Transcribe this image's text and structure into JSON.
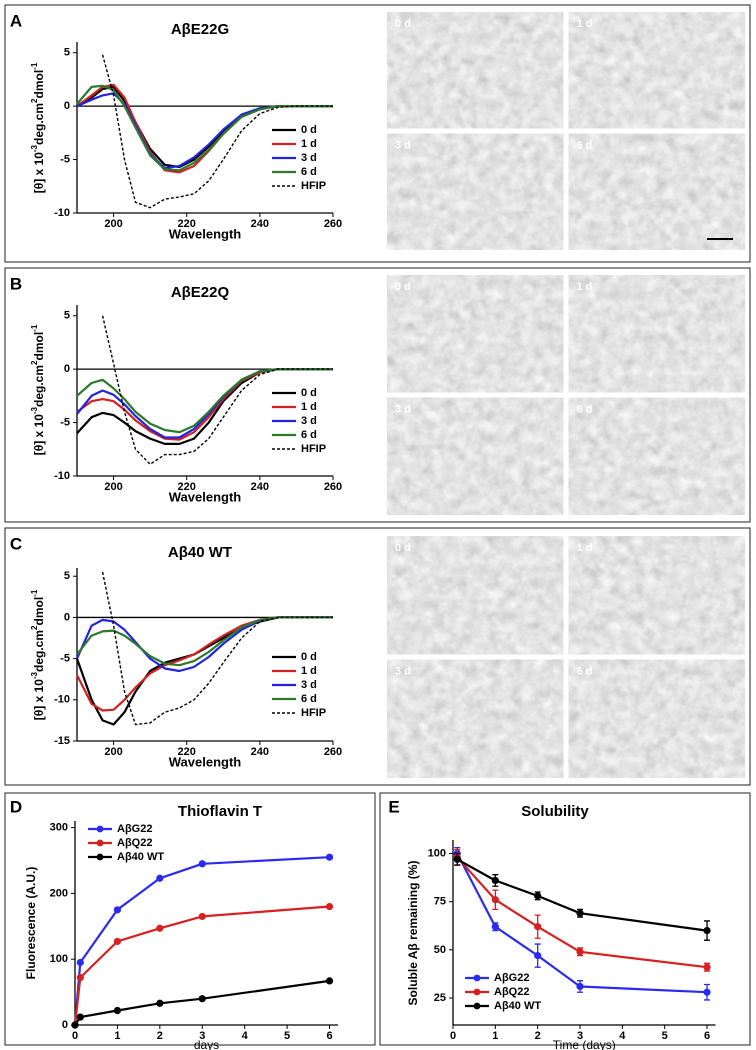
{
  "chart_data": [
    {
      "type": "line",
      "panel": "A",
      "title": "AβE22G",
      "xlabel": "Wavelength",
      "ylabel": [
        "[θ] x 10",
        "-3",
        "deg.cm",
        "2",
        "dmol",
        "-1"
      ],
      "x": [
        190,
        194,
        197,
        200,
        203,
        206,
        210,
        214,
        218,
        222,
        226,
        230,
        235,
        240,
        245,
        250,
        260
      ],
      "xlim": [
        190,
        260
      ],
      "xticks": [
        200,
        220,
        240,
        260
      ],
      "ylim": [
        -10,
        6
      ],
      "yticks": [
        -10,
        -5,
        0,
        5
      ],
      "legend": "lower right",
      "markers": false,
      "series": [
        {
          "name": "0 d",
          "color": "#000000",
          "values": [
            0,
            0.8,
            1.6,
            1.8,
            0.5,
            -1.5,
            -4,
            -5.5,
            -5.7,
            -5,
            -3.8,
            -2.3,
            -0.8,
            -0.2,
            0,
            0,
            0
          ]
        },
        {
          "name": "1 d",
          "color": "#d42020",
          "values": [
            0,
            1,
            1.8,
            2,
            0.8,
            -1.5,
            -4.3,
            -6,
            -6.2,
            -5.6,
            -4.2,
            -2.6,
            -1,
            -0.3,
            0,
            0,
            0
          ]
        },
        {
          "name": "3 d",
          "color": "#2323e0",
          "values": [
            0,
            0.6,
            1,
            1.2,
            0.2,
            -1.8,
            -4.5,
            -5.8,
            -5.6,
            -4.8,
            -3.6,
            -2.2,
            -0.8,
            -0.2,
            0,
            0,
            0
          ]
        },
        {
          "name": "6 d",
          "color": "#2a7a2a",
          "values": [
            0.2,
            1.8,
            1.9,
            1.5,
            0,
            -2,
            -4.6,
            -5.9,
            -6,
            -5.3,
            -4.1,
            -2.6,
            -1,
            -0.3,
            0,
            0,
            0
          ]
        },
        {
          "name": "HFIP",
          "color": "#000000",
          "dashed": true,
          "values": [
            null,
            null,
            4.8,
            1,
            -5,
            -9,
            -9.5,
            -8.7,
            -8.5,
            -8.2,
            -7,
            -5,
            -2.3,
            -0.7,
            -0.1,
            0,
            0
          ]
        }
      ]
    },
    {
      "type": "line",
      "panel": "B",
      "title": "AβE22Q",
      "xlabel": "Wavelength",
      "ylabel": [
        "[θ] x 10",
        "-3",
        "deg.cm",
        "2",
        "dmol",
        "-1"
      ],
      "x": [
        190,
        194,
        197,
        200,
        203,
        206,
        210,
        214,
        218,
        222,
        226,
        230,
        235,
        240,
        245,
        250,
        260
      ],
      "xlim": [
        190,
        260
      ],
      "xticks": [
        200,
        220,
        240,
        260
      ],
      "ylim": [
        -10,
        6
      ],
      "yticks": [
        -10,
        -5,
        0,
        5
      ],
      "legend": "lower right",
      "markers": false,
      "series": [
        {
          "name": "0 d",
          "color": "#000000",
          "values": [
            -6,
            -4.5,
            -4.1,
            -4.3,
            -5,
            -5.8,
            -6.5,
            -7,
            -7,
            -6.5,
            -5,
            -3,
            -1.3,
            -0.3,
            0,
            0,
            0
          ]
        },
        {
          "name": "1 d",
          "color": "#d42020",
          "values": [
            -4,
            -3,
            -2.8,
            -3,
            -3.8,
            -4.8,
            -5.8,
            -6.5,
            -6.6,
            -5.9,
            -4.5,
            -2.8,
            -1.1,
            -0.3,
            0,
            0,
            0
          ]
        },
        {
          "name": "3 d",
          "color": "#2323e0",
          "values": [
            -4.2,
            -2.5,
            -2,
            -2.4,
            -3.3,
            -4.4,
            -5.6,
            -6.4,
            -6.4,
            -5.6,
            -4.2,
            -2.6,
            -1,
            -0.2,
            0,
            0,
            0
          ]
        },
        {
          "name": "6 d",
          "color": "#2a7a2a",
          "values": [
            -2.5,
            -1.3,
            -1,
            -1.8,
            -2.8,
            -4,
            -5.1,
            -5.7,
            -5.9,
            -5.3,
            -4,
            -2.5,
            -1,
            -0.2,
            0,
            0,
            0
          ]
        },
        {
          "name": "HFIP",
          "color": "#000000",
          "dashed": true,
          "values": [
            null,
            null,
            5,
            0.5,
            -4,
            -7.5,
            -8.9,
            -8,
            -8,
            -7.7,
            -6.5,
            -4.5,
            -2,
            -0.5,
            0,
            0,
            0
          ]
        }
      ]
    },
    {
      "type": "line",
      "panel": "C",
      "title": "Aβ40 WT",
      "xlabel": "Wavelength",
      "ylabel": [
        "[θ] x 10",
        "-3",
        "deg.cm",
        "2",
        "dmol",
        "-1"
      ],
      "x": [
        190,
        194,
        197,
        200,
        203,
        206,
        210,
        214,
        218,
        222,
        226,
        230,
        235,
        240,
        245,
        250,
        260
      ],
      "xlim": [
        190,
        260
      ],
      "xticks": [
        200,
        220,
        240,
        260
      ],
      "ylim": [
        -15,
        6
      ],
      "yticks": [
        -15,
        -10,
        -5,
        0,
        5
      ],
      "legend": "lower right",
      "markers": false,
      "series": [
        {
          "name": "0 d",
          "color": "#000000",
          "values": [
            -5,
            -10,
            -12.5,
            -13,
            -11.5,
            -9,
            -6.5,
            -5.5,
            -5,
            -4.5,
            -3.5,
            -2.5,
            -1.3,
            -0.5,
            0,
            0,
            0
          ]
        },
        {
          "name": "1 d",
          "color": "#d42020",
          "values": [
            -7,
            -10.5,
            -11.3,
            -11.2,
            -10,
            -8.5,
            -6.8,
            -5.8,
            -5.2,
            -4.5,
            -3.3,
            -2.2,
            -1,
            -0.3,
            0,
            0,
            0
          ]
        },
        {
          "name": "3 d",
          "color": "#2323e0",
          "values": [
            -5,
            -1,
            -0.3,
            -0.5,
            -1.5,
            -3,
            -5,
            -6.2,
            -6.5,
            -6,
            -4.8,
            -3.2,
            -1.5,
            -0.4,
            0,
            0,
            0
          ]
        },
        {
          "name": "6 d",
          "color": "#2a7a2a",
          "values": [
            -4.5,
            -2.2,
            -1.7,
            -1.6,
            -2.2,
            -3.2,
            -4.7,
            -5.6,
            -5.8,
            -5.3,
            -4.2,
            -2.8,
            -1.2,
            -0.3,
            0,
            0,
            0
          ]
        },
        {
          "name": "HFIP",
          "color": "#000000",
          "dashed": true,
          "values": [
            null,
            null,
            5.5,
            -1,
            -9,
            -13,
            -12.8,
            -11.5,
            -11,
            -10,
            -8,
            -5.5,
            -2.5,
            -0.5,
            0,
            0,
            0
          ]
        }
      ]
    },
    {
      "type": "line",
      "panel": "D",
      "title": "Thioflavin T",
      "xlabel": "days",
      "ylabel": "Fluorescence (A.U.)",
      "x": [
        0,
        0.125,
        1,
        2,
        3,
        6
      ],
      "xlim": [
        0,
        6.2
      ],
      "xticks": [
        0,
        1,
        2,
        3,
        4,
        5,
        6
      ],
      "ylim": [
        0,
        310
      ],
      "yticks": [
        0,
        100,
        200,
        300
      ],
      "legend": "upper left",
      "markers": true,
      "series": [
        {
          "name": "AβG22",
          "color": "#2a2af0",
          "values": [
            0,
            95,
            175,
            223,
            245,
            255
          ]
        },
        {
          "name": "AβQ22",
          "color": "#d82020",
          "values": [
            0,
            72,
            127,
            147,
            165,
            180
          ]
        },
        {
          "name": "Aβ40 WT",
          "color": "#000000",
          "values": [
            0,
            12,
            22,
            33,
            40,
            67
          ]
        }
      ]
    },
    {
      "type": "line",
      "panel": "E",
      "title": "Solubility",
      "xlabel": "Time (days)",
      "ylabel": "Soluble Aβ remaining (%)",
      "x": [
        0.1,
        1,
        2,
        3,
        6
      ],
      "xlim": [
        0,
        6.2
      ],
      "xticks": [
        0,
        1,
        2,
        3,
        4,
        5,
        6
      ],
      "ylim": [
        11,
        107
      ],
      "yticks": [
        25,
        50,
        75,
        100
      ],
      "legend": "lower left",
      "markers": true,
      "series": [
        {
          "name": "AβG22",
          "color": "#2a2af0",
          "values": [
            100,
            62,
            47,
            31,
            28
          ],
          "errors": [
            3,
            2,
            6,
            3,
            4
          ]
        },
        {
          "name": "AβQ22",
          "color": "#d82020",
          "values": [
            98,
            76,
            62,
            49,
            41
          ],
          "errors": [
            4,
            5,
            6,
            2,
            2
          ]
        },
        {
          "name": "Aβ40 WT",
          "color": "#000000",
          "values": [
            97,
            86,
            78,
            69,
            60
          ],
          "errors": [
            3,
            3,
            2,
            2,
            5
          ]
        }
      ]
    }
  ],
  "micrographs": [
    [
      "0 d",
      "1 d",
      "3 d",
      "6 d"
    ],
    [
      "0 d",
      "1 d",
      "3 d",
      "6 d"
    ],
    [
      "0 d",
      "1 d",
      "3 d",
      "6 d"
    ]
  ]
}
